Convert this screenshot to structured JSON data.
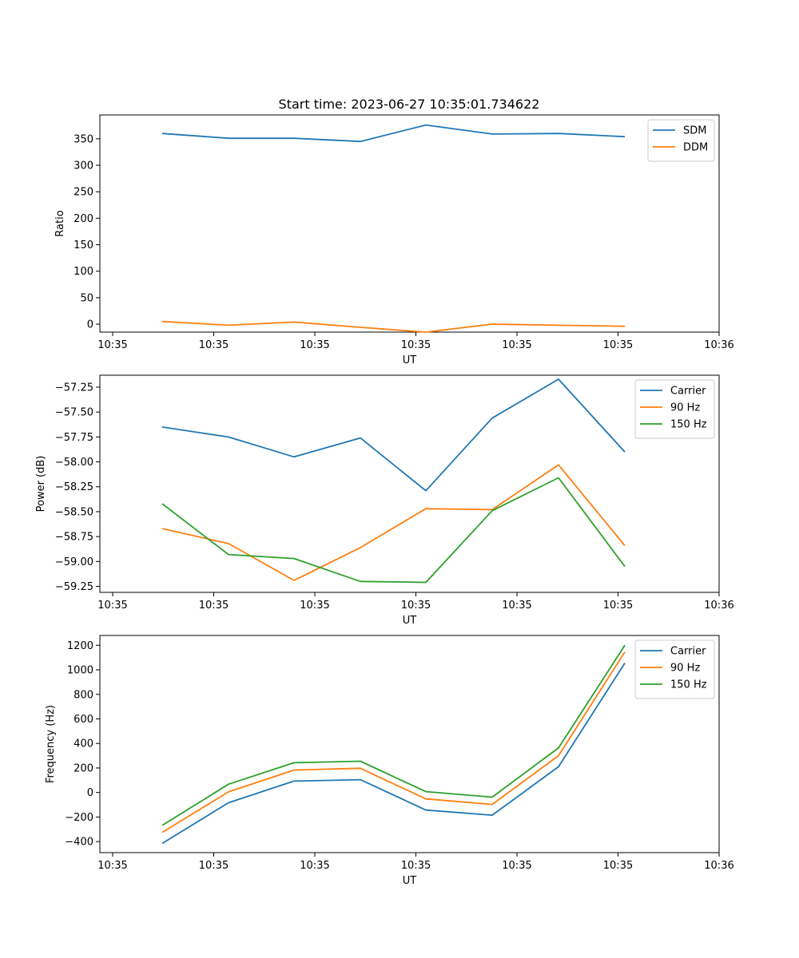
{
  "figure": {
    "title": "Start time: 2023-06-27 10:35:01.734622"
  },
  "colors": {
    "blue": "#1f77b4",
    "orange": "#ff7f0e",
    "green": "#2ca02c"
  },
  "chart_data": [
    {
      "type": "line",
      "title": "Start time: 2023-06-27 10:35:01.734622",
      "xlabel": "UT",
      "ylabel": "Ratio",
      "x_tick_labels": [
        "10:35",
        "10:35",
        "10:35",
        "10:35",
        "10:35",
        "10:35",
        "10:36"
      ],
      "y_ticks": [
        0,
        50,
        100,
        150,
        200,
        250,
        300,
        350
      ],
      "ylim": [
        -15,
        395
      ],
      "legend": "top-right",
      "grid": false,
      "series": [
        {
          "name": "SDM",
          "color": "#1f77b4",
          "values": [
            360,
            351,
            351,
            345,
            376,
            359,
            360,
            354
          ]
        },
        {
          "name": "DDM",
          "color": "#ff7f0e",
          "values": [
            5,
            -2,
            4,
            -6,
            -15,
            0,
            -2,
            -4
          ]
        }
      ]
    },
    {
      "type": "line",
      "xlabel": "UT",
      "ylabel": "Power (dB)",
      "x_tick_labels": [
        "10:35",
        "10:35",
        "10:35",
        "10:35",
        "10:35",
        "10:35",
        "10:36"
      ],
      "y_ticks": [
        -59.25,
        -59.0,
        -58.75,
        -58.5,
        -58.25,
        -58.0,
        -57.75,
        -57.5,
        -57.25
      ],
      "y_tick_labels": [
        "−59.25",
        "−59.00",
        "−58.75",
        "−58.50",
        "−58.25",
        "−58.00",
        "−57.75",
        "−57.50",
        "−57.25"
      ],
      "ylim": [
        -59.31,
        -57.13
      ],
      "legend": "top-right",
      "grid": false,
      "series": [
        {
          "name": "Carrier",
          "color": "#1f77b4",
          "values": [
            -57.65,
            -57.75,
            -57.95,
            -57.76,
            -58.29,
            -57.56,
            -57.17,
            -57.9
          ]
        },
        {
          "name": "90 Hz",
          "color": "#ff7f0e",
          "values": [
            -58.67,
            -58.82,
            -59.19,
            -58.86,
            -58.47,
            -58.48,
            -58.03,
            -58.84
          ]
        },
        {
          "name": "150 Hz",
          "color": "#2ca02c",
          "values": [
            -58.42,
            -58.93,
            -58.97,
            -59.2,
            -59.21,
            -58.49,
            -58.16,
            -59.05
          ]
        }
      ]
    },
    {
      "type": "line",
      "xlabel": "UT",
      "ylabel": "Frequency (Hz)",
      "x_tick_labels": [
        "10:35",
        "10:35",
        "10:35",
        "10:35",
        "10:35",
        "10:35",
        "10:36"
      ],
      "y_ticks": [
        -400,
        -200,
        0,
        200,
        400,
        600,
        800,
        1000,
        1200
      ],
      "y_tick_labels": [
        "−400",
        "−200",
        "0",
        "200",
        "400",
        "600",
        "800",
        "1000",
        "1200"
      ],
      "ylim": [
        -490,
        1280
      ],
      "legend": "top-right",
      "grid": false,
      "series": [
        {
          "name": "Carrier",
          "color": "#1f77b4",
          "values": [
            -415,
            -83,
            93,
            105,
            -143,
            -185,
            210,
            1055
          ]
        },
        {
          "name": "90 Hz",
          "color": "#ff7f0e",
          "values": [
            -325,
            5,
            183,
            198,
            -52,
            -97,
            300,
            1145
          ]
        },
        {
          "name": "150 Hz",
          "color": "#2ca02c",
          "values": [
            -268,
            68,
            243,
            255,
            7,
            -38,
            363,
            1200
          ]
        }
      ]
    }
  ]
}
